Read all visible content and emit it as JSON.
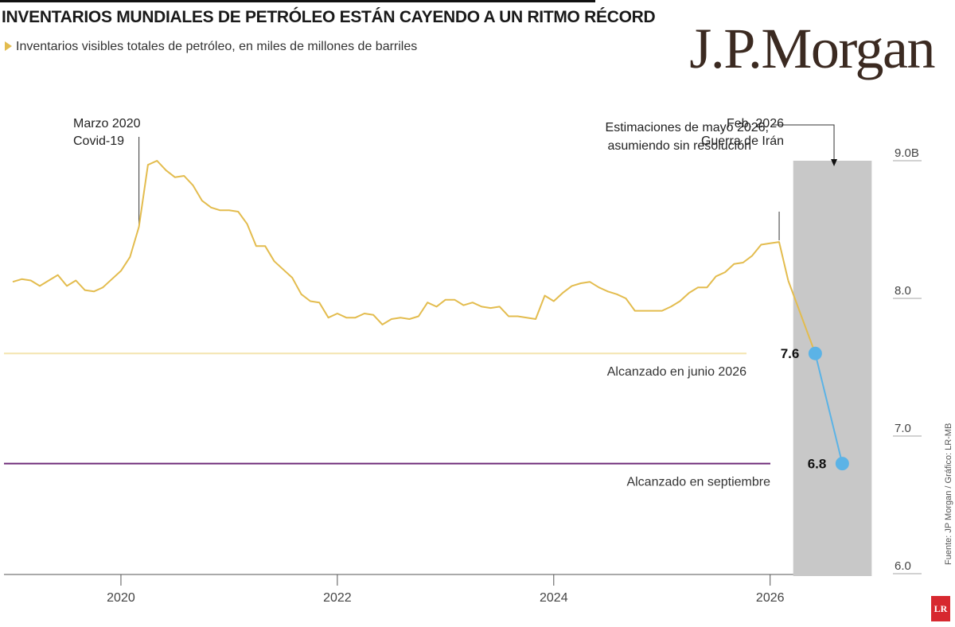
{
  "header": {
    "title": "INVENTARIOS MUNDIALES DE PETRÓLEO ESTÁN CAYENDO A UN RITMO RÉCORD",
    "subtitle": "Inventarios visibles totales de petróleo, en miles de millones de barriles",
    "logo": "J.P.Morgan"
  },
  "source": "Fuente: JP Morgan / Gráfico: LR-MB",
  "badge": "LR",
  "colors": {
    "history": "#e3bc4e",
    "estimate": "#5bb3e6",
    "line_june": "#f4e6b3",
    "line_sept": "#6e2a79",
    "shade": "#c8c8c8"
  },
  "chart_data": {
    "type": "line",
    "title": "INVENTARIOS MUNDIALES DE PETRÓLEO ESTÁN CAYENDO A UN RITMO RÉCORD",
    "subtitle": "Inventarios visibles totales de petróleo, en miles de millones de barriles",
    "xlabel": "",
    "ylabel": "",
    "xlim": [
      "2019-01",
      "2026-12"
    ],
    "ylim": [
      6.0,
      9.0
    ],
    "x_ticks": [
      "2020",
      "2022",
      "2024",
      "2026"
    ],
    "y_ticks": [
      "6.0",
      "7.0",
      "8.0",
      "9.0B"
    ],
    "y_tick_values": [
      6.0,
      7.0,
      8.0,
      9.0
    ],
    "grid": false,
    "series": [
      {
        "x": [
          "2019-01",
          "2019-02",
          "2019-03",
          "2019-04",
          "2019-05",
          "2019-06",
          "2019-07",
          "2019-08",
          "2019-09",
          "2019-10",
          "2019-11",
          "2019-12",
          "2020-01",
          "2020-02",
          "2020-03",
          "2020-04",
          "2020-05",
          "2020-06",
          "2020-07",
          "2020-08",
          "2020-09",
          "2020-10",
          "2020-11",
          "2020-12",
          "2021-01",
          "2021-02",
          "2021-03",
          "2021-04",
          "2021-05",
          "2021-06",
          "2021-07",
          "2021-08",
          "2021-09",
          "2021-10",
          "2021-11",
          "2021-12",
          "2022-01",
          "2022-02",
          "2022-03",
          "2022-04",
          "2022-05",
          "2022-06",
          "2022-07",
          "2022-08",
          "2022-09",
          "2022-10",
          "2022-11",
          "2022-12",
          "2023-01",
          "2023-02",
          "2023-03",
          "2023-04",
          "2023-05",
          "2023-06",
          "2023-07",
          "2023-08",
          "2023-09",
          "2023-10",
          "2023-11",
          "2023-12",
          "2024-01",
          "2024-02",
          "2024-03",
          "2024-04",
          "2024-05",
          "2024-06",
          "2024-07",
          "2024-08",
          "2024-09",
          "2024-10",
          "2024-11",
          "2024-12",
          "2025-01",
          "2025-02",
          "2025-03",
          "2025-04",
          "2025-05",
          "2025-06",
          "2025-07",
          "2025-08",
          "2025-09",
          "2025-10",
          "2025-11",
          "2025-12",
          "2026-01",
          "2026-02",
          "2026-03"
        ],
        "values": [
          8.12,
          8.14,
          8.13,
          8.09,
          8.13,
          8.17,
          8.09,
          8.13,
          8.06,
          8.05,
          8.08,
          8.14,
          8.2,
          8.3,
          8.52,
          8.97,
          9.0,
          8.93,
          8.88,
          8.89,
          8.82,
          8.71,
          8.66,
          8.64,
          8.64,
          8.63,
          8.54,
          8.38,
          8.38,
          8.27,
          8.21,
          8.15,
          8.03,
          7.98,
          7.97,
          7.86,
          7.89,
          7.86,
          7.86,
          7.89,
          7.88,
          7.81,
          7.85,
          7.86,
          7.85,
          7.87,
          7.97,
          7.94,
          7.99,
          7.99,
          7.95,
          7.97,
          7.94,
          7.93,
          7.94,
          7.87,
          7.87,
          7.86,
          7.85,
          8.02,
          7.98,
          8.04,
          8.09,
          8.11,
          8.12,
          8.08,
          8.05,
          8.03,
          8.0,
          7.91,
          7.91,
          7.91,
          7.91,
          7.94,
          7.98,
          8.04,
          8.08,
          8.08,
          8.16,
          8.19,
          8.25,
          8.26,
          8.31,
          8.39,
          8.4,
          8.41,
          8.13
        ]
      },
      {
        "x": [
          "2026-03",
          "2026-06",
          "2026-09"
        ],
        "values": [
          8.13,
          7.6,
          6.8
        ]
      }
    ],
    "data_labels": [
      {
        "x": "2026-06",
        "y": 7.6,
        "text": "7.6"
      },
      {
        "x": "2026-09",
        "y": 6.8,
        "text": "6.8"
      }
    ],
    "reference_lines": [
      {
        "y": 7.6,
        "label": "Alcanzado en junio 2026"
      },
      {
        "y": 6.8,
        "label": "Alcanzado en septiembre"
      }
    ],
    "shaded_region": {
      "x_start": "2026-04",
      "x_end": "2026-12",
      "label": "Estimaciones de mayo 2026, asumiendo sin resolución"
    },
    "annotations": [
      {
        "x": "2020-03",
        "lines": [
          "Marzo 2020",
          "Covid-19"
        ]
      },
      {
        "x": "2026-02",
        "lines": [
          "Feb. 2026",
          "Guerra de Irán"
        ]
      }
    ]
  }
}
